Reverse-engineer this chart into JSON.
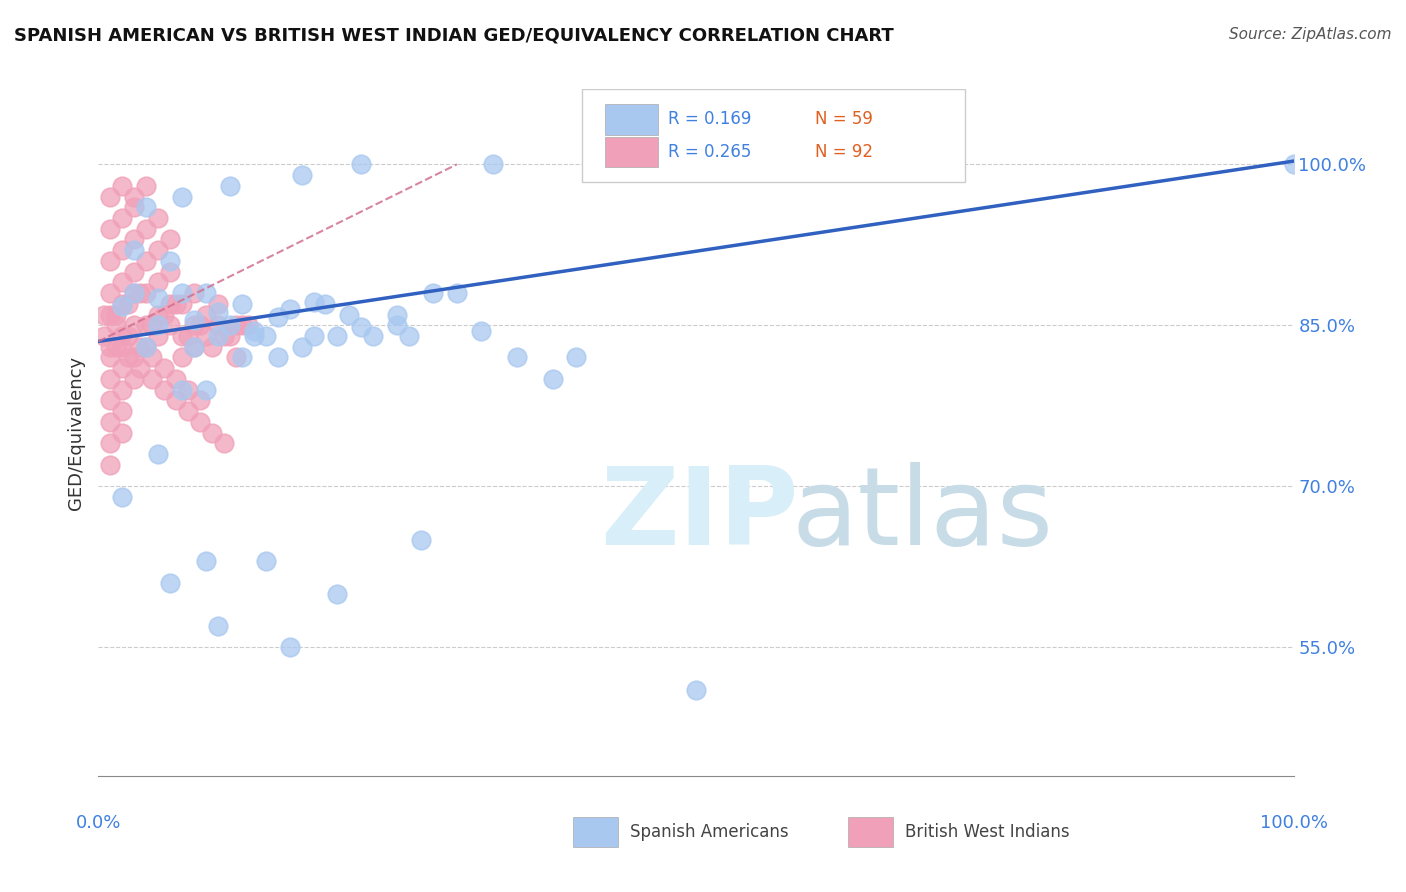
{
  "title": "SPANISH AMERICAN VS BRITISH WEST INDIAN GED/EQUIVALENCY CORRELATION CHART",
  "source": "Source: ZipAtlas.com",
  "ylabel": "GED/Equivalency",
  "ytick_labels": [
    "55.0%",
    "70.0%",
    "85.0%",
    "100.0%"
  ],
  "ytick_values": [
    0.55,
    0.7,
    0.85,
    1.0
  ],
  "xlim": [
    0.0,
    1.0
  ],
  "ylim": [
    0.43,
    1.07
  ],
  "blue_R": 0.169,
  "blue_N": 59,
  "pink_R": 0.265,
  "pink_N": 92,
  "blue_color": "#a8c8f0",
  "pink_color": "#f0a0b8",
  "trend_blue_color": "#3060c0",
  "trend_pink_color": "#d07090",
  "legend_label_blue": "Spanish Americans",
  "legend_label_pink": "British West Indians",
  "blue_scatter_x": [
    0.02,
    0.05,
    0.07,
    0.08,
    0.1,
    0.12,
    0.13,
    0.15,
    0.16,
    0.18,
    0.2,
    0.22,
    0.03,
    0.06,
    0.09,
    0.11,
    0.14,
    0.17,
    0.19,
    0.21,
    0.25,
    0.28,
    0.3,
    0.35,
    0.4,
    0.03,
    0.05,
    0.07,
    0.09,
    0.12,
    0.15,
    0.04,
    0.08,
    0.1,
    0.13,
    0.18,
    0.23,
    0.32,
    0.38,
    0.05,
    0.09,
    0.14,
    0.2,
    0.27,
    0.5,
    0.02,
    0.06,
    0.1,
    0.16,
    0.26,
    0.04,
    0.07,
    0.11,
    0.17,
    0.22,
    0.33,
    0.42,
    0.25,
    1.0
  ],
  "blue_scatter_y": [
    0.868,
    0.875,
    0.88,
    0.855,
    0.862,
    0.87,
    0.845,
    0.858,
    0.865,
    0.872,
    0.84,
    0.848,
    0.92,
    0.91,
    0.88,
    0.85,
    0.84,
    0.83,
    0.87,
    0.86,
    0.85,
    0.88,
    0.88,
    0.82,
    0.82,
    0.88,
    0.85,
    0.79,
    0.79,
    0.82,
    0.82,
    0.83,
    0.83,
    0.84,
    0.84,
    0.84,
    0.84,
    0.845,
    0.8,
    0.73,
    0.63,
    0.63,
    0.6,
    0.65,
    0.51,
    0.69,
    0.61,
    0.57,
    0.55,
    0.84,
    0.96,
    0.97,
    0.98,
    0.99,
    1.0,
    1.0,
    1.0,
    0.86,
    1.0
  ],
  "pink_scatter_x": [
    0.01,
    0.02,
    0.03,
    0.04,
    0.05,
    0.06,
    0.07,
    0.08,
    0.09,
    0.1,
    0.11,
    0.12,
    0.01,
    0.02,
    0.03,
    0.04,
    0.05,
    0.06,
    0.07,
    0.08,
    0.09,
    0.1,
    0.01,
    0.02,
    0.03,
    0.04,
    0.05,
    0.06,
    0.07,
    0.08,
    0.01,
    0.02,
    0.03,
    0.04,
    0.05,
    0.06,
    0.01,
    0.02,
    0.03,
    0.04,
    0.05,
    0.01,
    0.02,
    0.03,
    0.04,
    0.01,
    0.02,
    0.03,
    0.01,
    0.02,
    0.03,
    0.01,
    0.02,
    0.01,
    0.02,
    0.01,
    0.02,
    0.01,
    0.015,
    0.025,
    0.035,
    0.045,
    0.055,
    0.065,
    0.075,
    0.085,
    0.095,
    0.105,
    0.115,
    0.125,
    0.005,
    0.015,
    0.025,
    0.035,
    0.045,
    0.055,
    0.065,
    0.075,
    0.085,
    0.095,
    0.105,
    0.115,
    0.005,
    0.015,
    0.025,
    0.035,
    0.045,
    0.055,
    0.065,
    0.075,
    0.085
  ],
  "pink_scatter_y": [
    0.86,
    0.87,
    0.88,
    0.85,
    0.86,
    0.87,
    0.84,
    0.85,
    0.86,
    0.87,
    0.84,
    0.85,
    0.83,
    0.84,
    0.85,
    0.83,
    0.84,
    0.85,
    0.82,
    0.83,
    0.84,
    0.85,
    0.88,
    0.89,
    0.9,
    0.88,
    0.89,
    0.9,
    0.87,
    0.88,
    0.91,
    0.92,
    0.93,
    0.91,
    0.92,
    0.93,
    0.94,
    0.95,
    0.96,
    0.94,
    0.95,
    0.97,
    0.98,
    0.97,
    0.98,
    0.82,
    0.83,
    0.82,
    0.8,
    0.81,
    0.8,
    0.78,
    0.79,
    0.76,
    0.77,
    0.74,
    0.75,
    0.72,
    0.86,
    0.87,
    0.88,
    0.85,
    0.86,
    0.87,
    0.84,
    0.85,
    0.83,
    0.84,
    0.82,
    0.85,
    0.84,
    0.83,
    0.82,
    0.81,
    0.8,
    0.79,
    0.78,
    0.77,
    0.76,
    0.75,
    0.74,
    0.85,
    0.86,
    0.85,
    0.84,
    0.83,
    0.82,
    0.81,
    0.8,
    0.79,
    0.78
  ],
  "blue_trendline_x": [
    0.0,
    1.0
  ],
  "blue_trendline_y": [
    0.835,
    1.003
  ],
  "pink_trendline_x": [
    0.0,
    0.3
  ],
  "pink_trendline_y": [
    0.835,
    1.0
  ],
  "watermark_zip": "ZIP",
  "watermark_atlas": "atlas",
  "watermark_color": "#d8eef8",
  "background_color": "#ffffff",
  "r_color": "#4080e0",
  "n_color": "#e06020",
  "ytick_color": "#4080e0",
  "xlabel_color": "#4080e0"
}
